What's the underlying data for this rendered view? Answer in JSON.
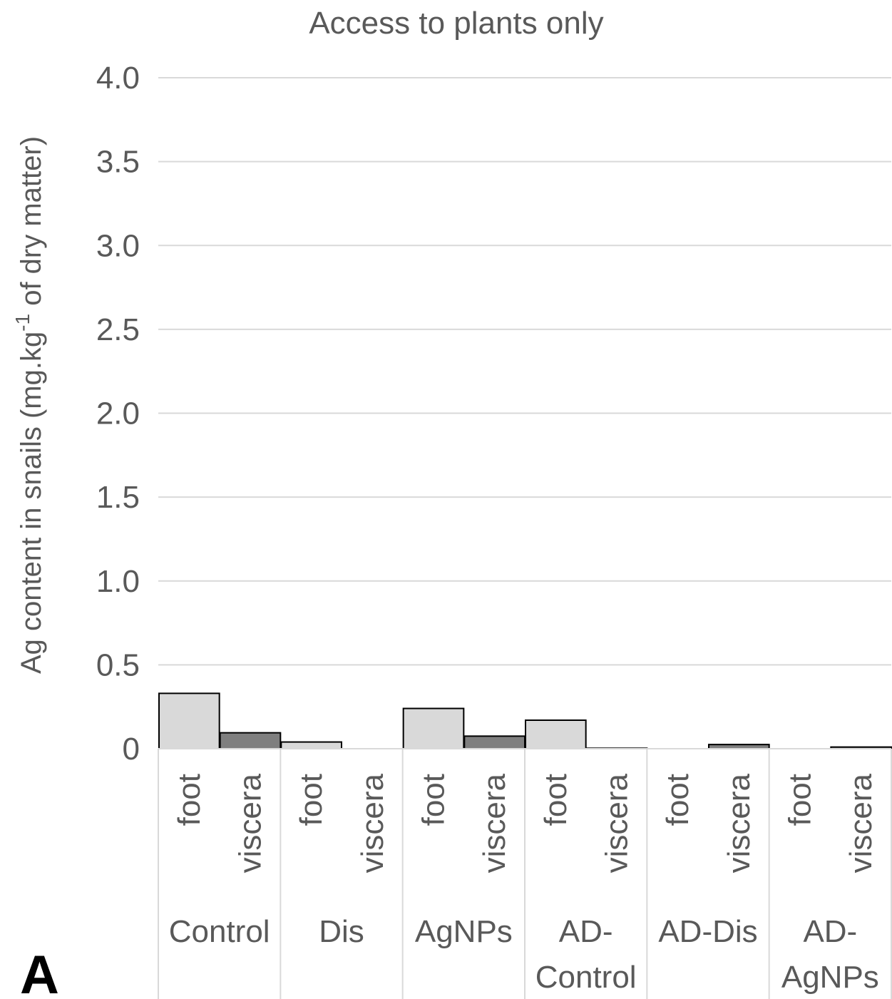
{
  "chart_data": {
    "type": "bar",
    "title": "Access to plants only",
    "ylabel_main": "Ag content in snails (mg.kg",
    "ylabel_sup": "-1",
    "ylabel_end": " of dry matter)",
    "ylim": [
      0,
      4.0
    ],
    "yticks": [
      "0",
      "0.5",
      "1.0",
      "1.5",
      "2.0",
      "2.5",
      "3.0",
      "3.5",
      "4.0"
    ],
    "grid": true,
    "panel_label": "A",
    "groups": [
      {
        "label_lines": [
          "Control"
        ],
        "subcategories": [
          "foot",
          "viscera"
        ],
        "values": [
          0.33,
          0.095
        ]
      },
      {
        "label_lines": [
          "Dis"
        ],
        "subcategories": [
          "foot",
          "viscera"
        ],
        "values": [
          0.04,
          0.0
        ]
      },
      {
        "label_lines": [
          "AgNPs"
        ],
        "subcategories": [
          "foot",
          "viscera"
        ],
        "values": [
          0.24,
          0.075
        ]
      },
      {
        "label_lines": [
          "AD-",
          "Control"
        ],
        "subcategories": [
          "foot",
          "viscera"
        ],
        "values": [
          0.17,
          0.003
        ]
      },
      {
        "label_lines": [
          "AD-Dis"
        ],
        "subcategories": [
          "foot",
          "viscera"
        ],
        "values": [
          0.0,
          0.025
        ]
      },
      {
        "label_lines": [
          "AD-",
          "AgNPs"
        ],
        "subcategories": [
          "foot",
          "viscera"
        ],
        "values": [
          0.0,
          0.01
        ]
      }
    ],
    "colors": {
      "foot": "#d9d9d9",
      "viscera": "#7f7f7f",
      "grid": "#d9d9d9",
      "text": "#595959"
    }
  }
}
